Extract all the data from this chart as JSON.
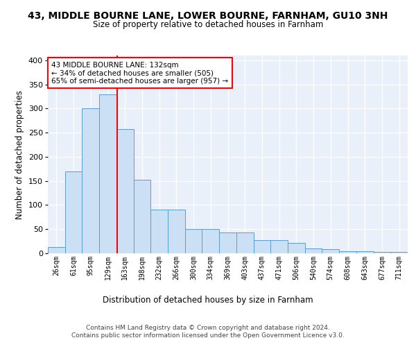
{
  "title": "43, MIDDLE BOURNE LANE, LOWER BOURNE, FARNHAM, GU10 3NH",
  "subtitle": "Size of property relative to detached houses in Farnham",
  "xlabel": "Distribution of detached houses by size in Farnham",
  "ylabel": "Number of detached properties",
  "bar_labels": [
    "26sqm",
    "61sqm",
    "95sqm",
    "129sqm",
    "163sqm",
    "198sqm",
    "232sqm",
    "266sqm",
    "300sqm",
    "334sqm",
    "369sqm",
    "403sqm",
    "437sqm",
    "471sqm",
    "506sqm",
    "540sqm",
    "574sqm",
    "608sqm",
    "643sqm",
    "677sqm",
    "711sqm"
  ],
  "bar_heights": [
    13,
    170,
    300,
    330,
    257,
    152,
    91,
    91,
    50,
    50,
    43,
    43,
    28,
    28,
    22,
    10,
    9,
    5,
    5,
    3,
    3
  ],
  "bar_color": "#cce0f5",
  "bar_edge_color": "#5b9bd5",
  "red_line_x": 3.55,
  "annotation_text": "43 MIDDLE BOURNE LANE: 132sqm\n← 34% of detached houses are smaller (505)\n65% of semi-detached houses are larger (957) →",
  "annotation_box_color": "white",
  "annotation_box_edge": "red",
  "footer": "Contains HM Land Registry data © Crown copyright and database right 2024.\nContains public sector information licensed under the Open Government Licence v3.0.",
  "ylim": [
    0,
    410
  ],
  "yticks": [
    0,
    50,
    100,
    150,
    200,
    250,
    300,
    350,
    400
  ],
  "background_color": "#eaf0fa"
}
